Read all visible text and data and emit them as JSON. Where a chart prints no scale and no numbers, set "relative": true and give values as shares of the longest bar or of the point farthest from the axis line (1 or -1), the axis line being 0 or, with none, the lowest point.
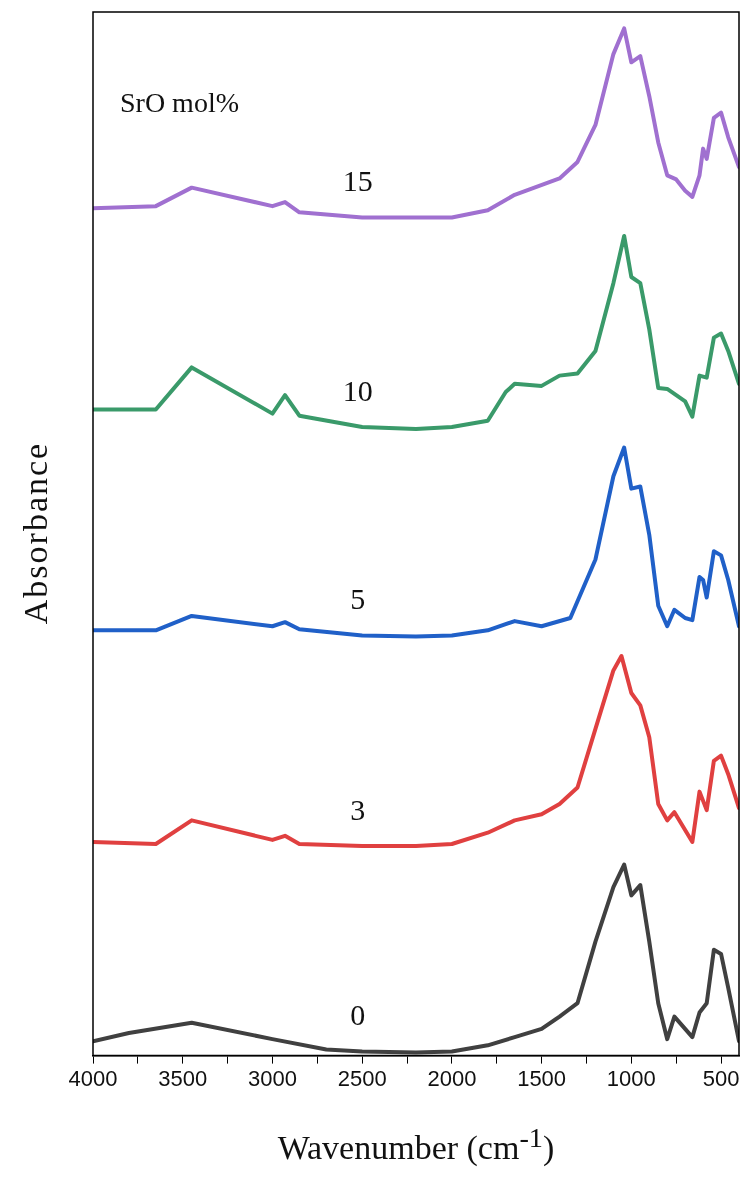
{
  "chart_data": {
    "type": "line",
    "relative": true,
    "xlabel": "Wavenumber (cm$^{-1}$)",
    "ylabel": "Absorbance",
    "legend_title": "SrO mol%",
    "legend": false,
    "grid": false,
    "marker": "none",
    "line_style": "solid",
    "xlim": [
      4000,
      400
    ],
    "xticks": [
      4000,
      {
        "value": 3750,
        "label": null
      },
      3500,
      {
        "value": 3250,
        "label": null
      },
      3000,
      {
        "value": 2750,
        "label": null
      },
      2500,
      {
        "value": 2250,
        "label": null
      },
      2000,
      {
        "value": 1750,
        "label": null
      },
      1500,
      {
        "value": 1250,
        "label": null
      },
      1000,
      {
        "value": 750,
        "label": null
      },
      500
    ],
    "series": [
      {
        "name": "0",
        "color": "#404040",
        "x": [
          4000,
          3800,
          3450,
          3000,
          2700,
          2500,
          2200,
          2000,
          1800,
          1650,
          1500,
          1400,
          1300,
          1200,
          1100,
          1040,
          1000,
          950,
          900,
          850,
          800,
          760,
          660,
          620,
          580,
          540,
          500,
          460,
          400
        ],
        "values": [
          0.014,
          0.022,
          0.032,
          0.016,
          0.006,
          0.004,
          0.003,
          0.004,
          0.01,
          0.018,
          0.026,
          0.038,
          0.051,
          0.111,
          0.164,
          0.186,
          0.156,
          0.166,
          0.111,
          0.051,
          0.016,
          0.038,
          0.018,
          0.042,
          0.051,
          0.103,
          0.099,
          0.066,
          0.014
        ]
      },
      {
        "name": "3",
        "color": "#e04040",
        "x": [
          4000,
          3650,
          3450,
          3000,
          2930,
          2850,
          2500,
          2200,
          2000,
          1800,
          1650,
          1500,
          1400,
          1300,
          1200,
          1100,
          1055,
          1000,
          950,
          900,
          850,
          800,
          760,
          660,
          620,
          580,
          540,
          500,
          460,
          400
        ],
        "values": [
          0.208,
          0.206,
          0.229,
          0.21,
          0.214,
          0.206,
          0.204,
          0.204,
          0.206,
          0.217,
          0.229,
          0.235,
          0.245,
          0.261,
          0.318,
          0.375,
          0.389,
          0.353,
          0.341,
          0.31,
          0.245,
          0.229,
          0.237,
          0.208,
          0.257,
          0.239,
          0.287,
          0.292,
          0.274,
          0.241
        ]
      },
      {
        "name": "5",
        "color": "#2060c8",
        "x": [
          4000,
          3650,
          3450,
          3000,
          2930,
          2850,
          2500,
          2200,
          2000,
          1800,
          1650,
          1500,
          1340,
          1200,
          1100,
          1040,
          1000,
          950,
          900,
          850,
          800,
          760,
          700,
          660,
          620,
          600,
          580,
          540,
          500,
          460,
          400
        ],
        "values": [
          0.414,
          0.414,
          0.428,
          0.418,
          0.422,
          0.415,
          0.409,
          0.408,
          0.409,
          0.414,
          0.423,
          0.418,
          0.426,
          0.483,
          0.564,
          0.592,
          0.552,
          0.554,
          0.507,
          0.438,
          0.418,
          0.434,
          0.426,
          0.424,
          0.466,
          0.463,
          0.446,
          0.491,
          0.487,
          0.463,
          0.418
        ]
      },
      {
        "name": "10",
        "color": "#3a9a6a",
        "x": [
          4000,
          3650,
          3450,
          3000,
          2930,
          2850,
          2500,
          2200,
          2000,
          1800,
          1700,
          1650,
          1500,
          1400,
          1300,
          1200,
          1100,
          1040,
          1000,
          950,
          900,
          850,
          800,
          700,
          660,
          620,
          580,
          540,
          500,
          460,
          400
        ],
        "values": [
          0.629,
          0.629,
          0.67,
          0.625,
          0.643,
          0.623,
          0.612,
          0.61,
          0.612,
          0.618,
          0.646,
          0.654,
          0.652,
          0.662,
          0.664,
          0.686,
          0.752,
          0.798,
          0.758,
          0.752,
          0.707,
          0.65,
          0.649,
          0.637,
          0.622,
          0.662,
          0.66,
          0.699,
          0.703,
          0.686,
          0.654
        ]
      },
      {
        "name": "15",
        "color": "#a070d0",
        "x": [
          4000,
          3650,
          3450,
          3000,
          2930,
          2850,
          2500,
          2000,
          1800,
          1650,
          1400,
          1300,
          1200,
          1100,
          1040,
          1000,
          950,
          900,
          850,
          800,
          750,
          700,
          660,
          620,
          600,
          580,
          540,
          500,
          460,
          400
        ],
        "values": [
          0.825,
          0.827,
          0.845,
          0.827,
          0.831,
          0.821,
          0.816,
          0.816,
          0.823,
          0.838,
          0.854,
          0.87,
          0.906,
          0.975,
          1,
          0.967,
          0.973,
          0.934,
          0.889,
          0.857,
          0.853,
          0.842,
          0.836,
          0.857,
          0.883,
          0.873,
          0.913,
          0.918,
          0.894,
          0.865
        ]
      }
    ]
  }
}
